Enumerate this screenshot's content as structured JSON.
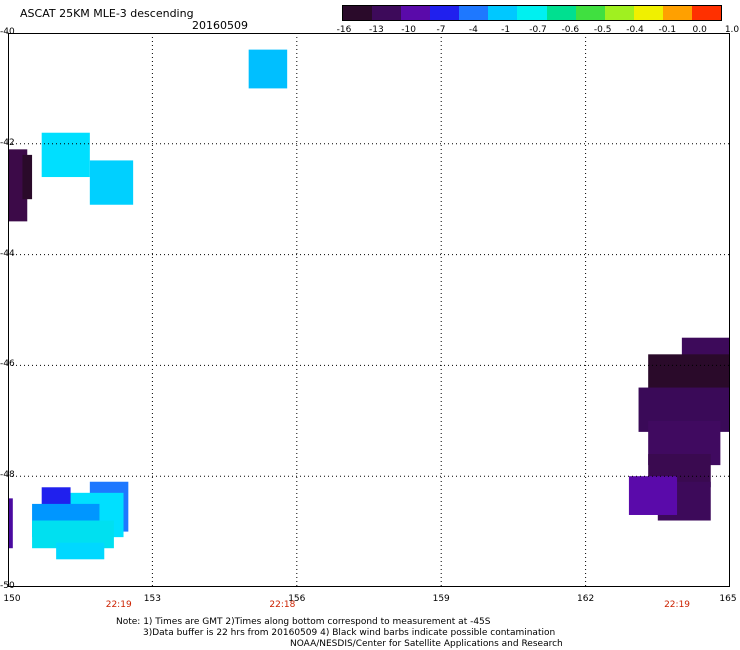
{
  "header": {
    "title": "ASCAT 25KM MLE-3 descending",
    "date": "20160509"
  },
  "colorbar": {
    "labels": [
      "-16",
      "-13",
      "-10",
      "-7",
      "-4",
      "-1",
      "-0.7",
      "-0.6",
      "-0.5",
      "-0.4",
      "-0.1",
      "0.0",
      "1.0"
    ],
    "colors": [
      "#2a0a2a",
      "#3d0a5a",
      "#5a0aaa",
      "#2020ee",
      "#1e78ff",
      "#00c8ff",
      "#00f0f0",
      "#00e090",
      "#40e040",
      "#a0f020",
      "#f0f000",
      "#ffa000",
      "#ff3000"
    ]
  },
  "map": {
    "lat_range": [
      -50,
      -40
    ],
    "lon_range": [
      150,
      165
    ],
    "lat_ticks": [
      "-40",
      "-42",
      "-44",
      "-46",
      "-48",
      "-50"
    ],
    "lon_ticks": [
      "150",
      "153",
      "156",
      "159",
      "162",
      "165"
    ],
    "time_labels": [
      "22:19",
      "22:18",
      "22:19"
    ],
    "swaths": [
      {
        "lon0": 155.0,
        "lon1": 155.8,
        "lat0": -40.3,
        "lat1": -41.0,
        "color": "#00bfff"
      },
      {
        "lon0": 150.7,
        "lon1": 151.7,
        "lat0": -41.8,
        "lat1": -42.6,
        "color": "#00dfff"
      },
      {
        "lon0": 151.7,
        "lon1": 152.6,
        "lat0": -42.3,
        "lat1": -43.1,
        "color": "#00d0ff"
      },
      {
        "lon0": 150.0,
        "lon1": 150.4,
        "lat0": -42.1,
        "lat1": -43.4,
        "color": "#3c0a48"
      },
      {
        "lon0": 150.3,
        "lon1": 150.5,
        "lat0": -42.2,
        "lat1": -43.0,
        "color": "#2a0a2a"
      },
      {
        "lon0": 151.7,
        "lon1": 152.5,
        "lat0": -48.1,
        "lat1": -49.0,
        "color": "#1e78ff"
      },
      {
        "lon0": 150.8,
        "lon1": 152.4,
        "lat0": -48.3,
        "lat1": -49.1,
        "color": "#00e0ff"
      },
      {
        "lon0": 150.7,
        "lon1": 151.3,
        "lat0": -48.2,
        "lat1": -48.6,
        "color": "#2020ee"
      },
      {
        "lon0": 150.5,
        "lon1": 151.9,
        "lat0": -48.5,
        "lat1": -49.1,
        "color": "#0096ff"
      },
      {
        "lon0": 150.5,
        "lon1": 152.2,
        "lat0": -48.8,
        "lat1": -49.3,
        "color": "#00e0f0"
      },
      {
        "lon0": 151.0,
        "lon1": 152.0,
        "lat0": -49.2,
        "lat1": -49.5,
        "color": "#00d8ff"
      },
      {
        "lon0": 150.0,
        "lon1": 150.1,
        "lat0": -48.4,
        "lat1": -49.3,
        "color": "#4a0aa0"
      },
      {
        "lon0": 164.0,
        "lon1": 165.0,
        "lat0": -45.5,
        "lat1": -46.0,
        "color": "#3d0a5a"
      },
      {
        "lon0": 163.3,
        "lon1": 165.0,
        "lat0": -45.8,
        "lat1": -46.6,
        "color": "#2a0a2a"
      },
      {
        "lon0": 163.1,
        "lon1": 165.0,
        "lat0": -46.4,
        "lat1": -47.2,
        "color": "#3a0a58"
      },
      {
        "lon0": 163.3,
        "lon1": 164.8,
        "lat0": -47.0,
        "lat1": -47.8,
        "color": "#400a60"
      },
      {
        "lon0": 163.3,
        "lon1": 164.6,
        "lat0": -47.6,
        "lat1": -48.2,
        "color": "#3a0a50"
      },
      {
        "lon0": 163.5,
        "lon1": 164.6,
        "lat0": -48.1,
        "lat1": -48.8,
        "color": "#3d0a5a"
      },
      {
        "lon0": 162.9,
        "lon1": 163.9,
        "lat0": -48.0,
        "lat1": -48.7,
        "color": "#5a0aaa"
      }
    ]
  },
  "notes": {
    "line1": "Note: 1) Times are GMT 2)Times along bottom correspond to measurement at -45S",
    "line2": "3)Data buffer is 22 hrs from 20160509 4) Black wind barbs indicate possible contamination",
    "line3": "NOAA/NESDIS/Center for Satellite Applications and Research"
  }
}
